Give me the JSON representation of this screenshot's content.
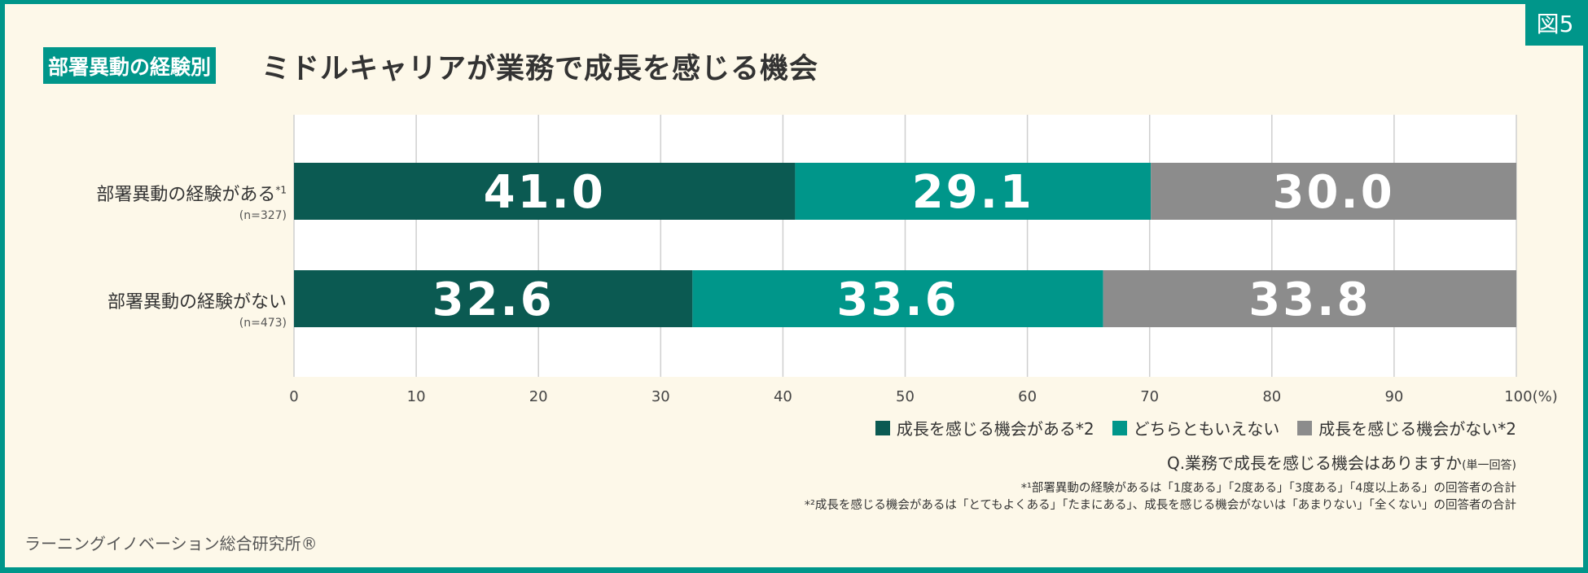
{
  "figure_label": "図5",
  "header": {
    "tag": "部署異動の経験別",
    "title": "ミドルキャリアが業務で成長を感じる機会"
  },
  "chart_data": {
    "type": "bar",
    "orientation": "horizontal",
    "stacked": true,
    "categories": [
      {
        "label": "部署異動の経験がある",
        "note": "*1",
        "n": "(n=327)"
      },
      {
        "label": "部署異動の経験がない",
        "note": "",
        "n": "(n=473)"
      }
    ],
    "series": [
      {
        "name": "成長を感じる機会がある*2",
        "color": "#0b5a52",
        "values": [
          41.0,
          32.6
        ]
      },
      {
        "name": "どちらともいえない",
        "color": "#00968a",
        "values": [
          29.1,
          33.6
        ]
      },
      {
        "name": "成長を感じる機会がない*2",
        "color": "#8c8c8c",
        "values": [
          30.0,
          33.8
        ]
      }
    ],
    "xlim": [
      0,
      100
    ],
    "xticks": [
      "0",
      "10",
      "20",
      "30",
      "40",
      "50",
      "60",
      "70",
      "80",
      "90",
      "100(%)"
    ],
    "grid": true,
    "legend_position": "bottom-right"
  },
  "question": {
    "text": "Q.業務で成長を感じる機会はありますか",
    "suffix": "(単一回答)"
  },
  "footnotes": [
    "*¹部署異動の経験があるは「1度ある」「2度ある」「3度ある」「4度以上ある」の回答者の合計",
    "*²成長を感じる機会があるは「とてもよくある」「たまにある」、成長を感じる機会がないは「あまりない」「全くない」の回答者の合計"
  ],
  "footer": "ラーニングイノベーション総合研究所®"
}
